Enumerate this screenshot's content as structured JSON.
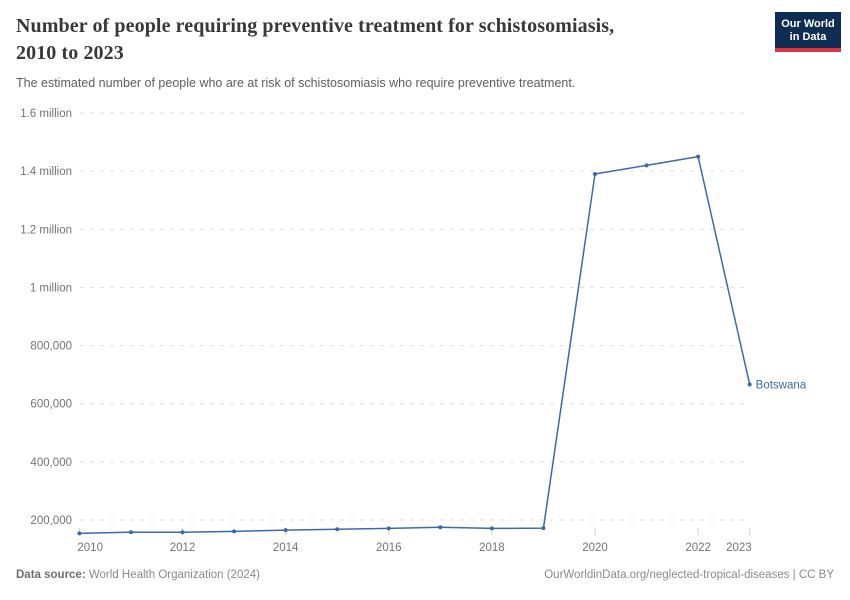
{
  "header": {
    "title_lines": [
      "Number of people requiring preventive treatment for schistosomiasis,",
      "2010 to 2023"
    ],
    "subtitle": "The estimated number of people who are at risk of schistosomiasis who require preventive treatment.",
    "logo_lines": [
      "Our World",
      "in Data"
    ]
  },
  "colors": {
    "line": "#3c6aa9",
    "entity_label": "#3c6aa9",
    "logo_bg": "#0f2d52",
    "logo_accent": "#d8353c",
    "grid": "#dedede",
    "tick_mark": "#cfcfcf",
    "axis_text": "#737373"
  },
  "chart_data": {
    "type": "line",
    "title": "Number of people requiring preventive treatment for schistosomiasis, 2010 to 2023",
    "subtitle": "The estimated number of people who are at risk of schistosomiasis who require preventive treatment.",
    "x": [
      2010,
      2011,
      2012,
      2013,
      2014,
      2015,
      2016,
      2017,
      2018,
      2019,
      2020,
      2021,
      2022,
      2023
    ],
    "series": [
      {
        "name": "Botswana",
        "color": "#3c6aa9",
        "values": [
          154000,
          158000,
          158000,
          161000,
          165000,
          168000,
          171000,
          175000,
          171000,
          172000,
          1390000,
          1420000,
          1450000,
          666000
        ]
      }
    ],
    "xlabel": "",
    "ylabel": "",
    "ylim": [
      100000,
      1600000
    ],
    "xlim": [
      2010,
      2023
    ],
    "grid": "horizontal-dashed",
    "legend_position": "end-of-line",
    "y_ticks": [
      {
        "value": 200000,
        "label": "200,000"
      },
      {
        "value": 400000,
        "label": "400,000"
      },
      {
        "value": 600000,
        "label": "600,000"
      },
      {
        "value": 800000,
        "label": "800,000"
      },
      {
        "value": 1000000,
        "label": "1 million"
      },
      {
        "value": 1200000,
        "label": "1.2 million"
      },
      {
        "value": 1400000,
        "label": "1.4 million"
      },
      {
        "value": 1600000,
        "label": "1.6 million"
      }
    ],
    "x_ticks": [
      {
        "value": 2010,
        "label": "2010"
      },
      {
        "value": 2012,
        "label": "2012"
      },
      {
        "value": 2014,
        "label": "2014"
      },
      {
        "value": 2016,
        "label": "2016"
      },
      {
        "value": 2018,
        "label": "2018"
      },
      {
        "value": 2020,
        "label": "2020"
      },
      {
        "value": 2022,
        "label": "2022"
      },
      {
        "value": 2023,
        "label": "2023"
      }
    ]
  },
  "footer": {
    "datasource_label": "Data source:",
    "datasource_value": "World Health Organization (2024)",
    "link": "OurWorldinData.org/neglected-tropical-diseases | CC BY"
  }
}
